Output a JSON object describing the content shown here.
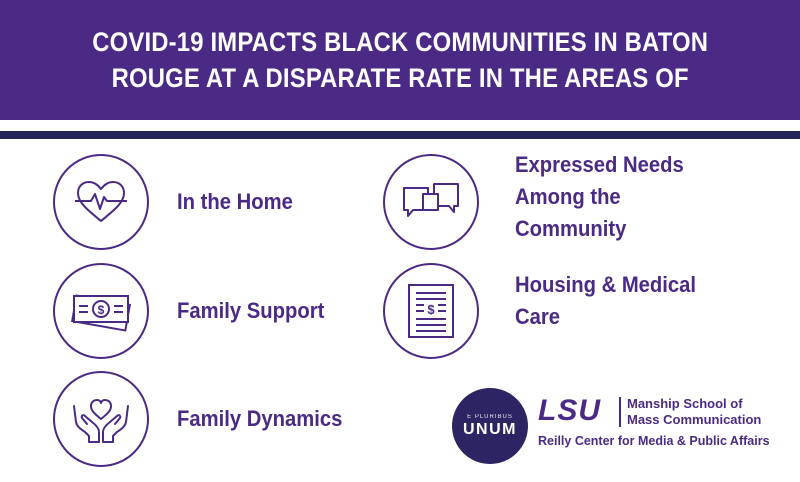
{
  "header": {
    "title_line1": "COVID-19 IMPACTS BLACK COMMUNITIES IN BATON",
    "title_line2": "ROUGE AT A DISPARATE RATE IN THE AREAS OF"
  },
  "colors": {
    "brand_purple": "#4b2a86",
    "dark_navy": "#27245a",
    "seal_navy": "#2d2563",
    "background": "#ffffff"
  },
  "areas": [
    {
      "icon": "heart-pulse-icon",
      "lines": [
        "In the Home"
      ]
    },
    {
      "icon": "money-bills-icon",
      "lines": [
        "Family Support"
      ]
    },
    {
      "icon": "hands-heart-icon",
      "lines": [
        "Family Dynamics"
      ]
    },
    {
      "icon": "speech-bubbles-icon",
      "lines": [
        "Expressed Needs",
        "Among the",
        "Community"
      ]
    },
    {
      "icon": "document-dollar-icon",
      "lines": [
        "Housing & Medical",
        "Care"
      ]
    }
  ],
  "footer": {
    "seal_small_text": "E PLURIBUS",
    "seal_big_text": "UNUM",
    "lsu_logo_text": "LSU",
    "school_line1": "Manship School of",
    "school_line2": "Mass Communication",
    "center_name": "Reilly Center for Media & Public Affairs"
  }
}
